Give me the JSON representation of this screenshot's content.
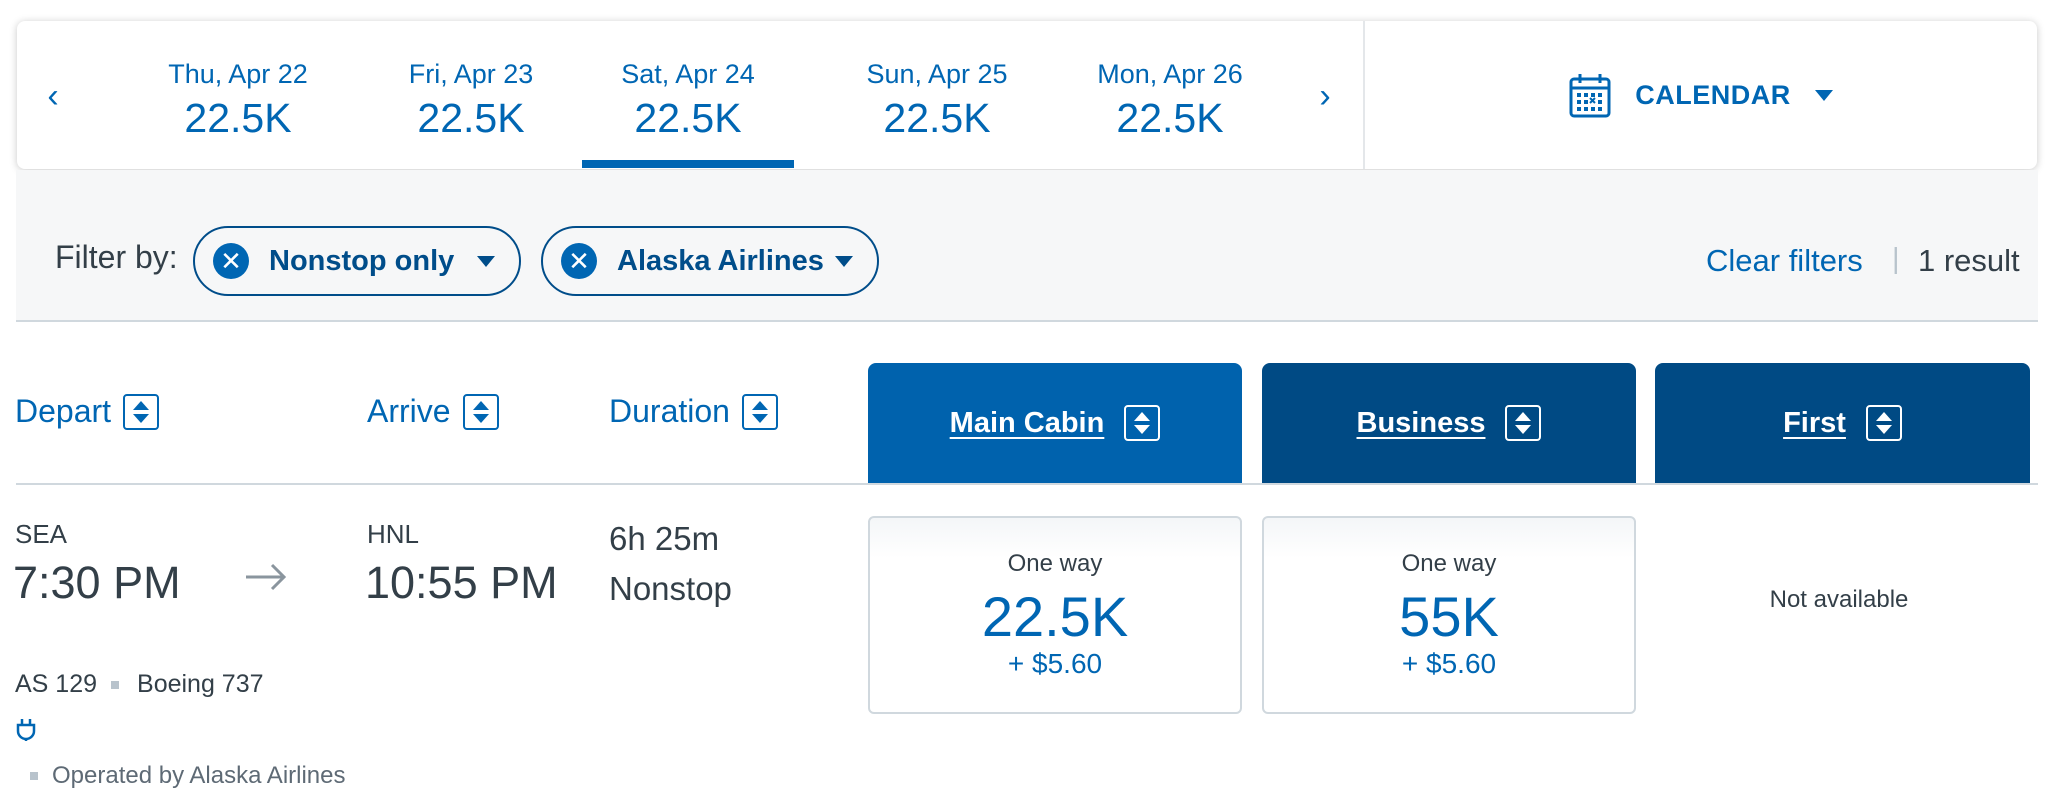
{
  "date_strip": {
    "prev_label": "‹",
    "next_label": "›",
    "dates": [
      {
        "date": "Thu, Apr 22",
        "price": "22.5K"
      },
      {
        "date": "Fri, Apr 23",
        "price": "22.5K"
      },
      {
        "date": "Sat, Apr 24",
        "price": "22.5K",
        "selected": true
      },
      {
        "date": "Sun, Apr 25",
        "price": "22.5K"
      },
      {
        "date": "Mon, Apr 26",
        "price": "22.5K"
      }
    ],
    "calendar_label": "CALENDAR"
  },
  "filters": {
    "label": "Filter by:",
    "chips": [
      "Nonstop only",
      "Alaska Airlines"
    ],
    "clear_label": "Clear filters",
    "separator": "|",
    "result_count": "1 result"
  },
  "columns": {
    "depart": "Depart",
    "arrive": "Arrive",
    "duration": "Duration",
    "main_cabin": "Main Cabin",
    "business": "Business",
    "first": "First"
  },
  "flight": {
    "origin": "SEA",
    "depart_time": "7:30 PM",
    "destination": "HNL",
    "arrive_time": "10:55 PM",
    "duration": "6h 25m",
    "stops": "Nonstop",
    "flight_number": "AS 129",
    "aircraft": "Boeing 737",
    "operated_by": "Operated by Alaska Airlines",
    "fares": {
      "main_cabin": {
        "label": "One way",
        "miles": "22.5K",
        "tax": "+ $5.60"
      },
      "business": {
        "label": "One way",
        "miles": "55K",
        "tax": "+ $5.60"
      },
      "first": {
        "status": "Not available"
      }
    }
  },
  "colors": {
    "primary_blue": "#0066b3",
    "dark_blue": "#004d8a",
    "main_cabin_header": "#0062ad",
    "business_header": "#004a84",
    "first_header": "#004a84"
  }
}
